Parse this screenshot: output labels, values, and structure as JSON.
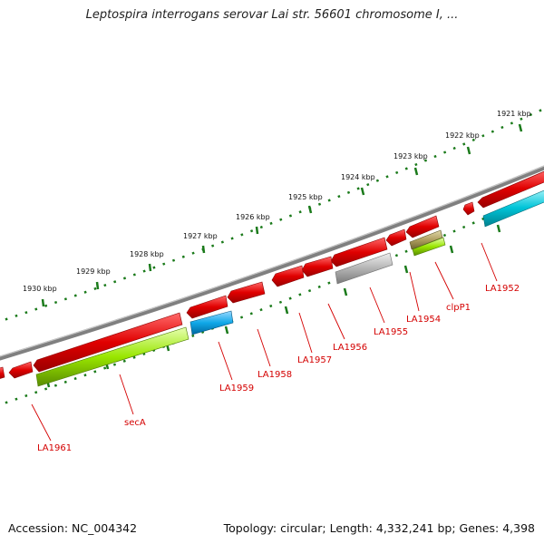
{
  "title": "Leptospira interrogans serovar Lai str. 56601 chromosome I, ...",
  "footer": {
    "accession": "Accession: NC_004342",
    "topology": "Topology: circular; Length: 4,332,241 bp; Genes: 4,398"
  },
  "scale_labels": [
    "1921 kbp",
    "1922 kbp",
    "1923 kbp",
    "1924 kbp",
    "1925 kbp",
    "1926 kbp",
    "1927 kbp",
    "1928 kbp",
    "1929 kbp",
    "1930 kbp"
  ],
  "gene_labels": [
    "LA1952",
    "clpP1",
    "LA1954",
    "LA1955",
    "LA1956",
    "LA1957",
    "LA1958",
    "LA1959",
    "secA",
    "LA1961"
  ],
  "colors": {
    "gene_red": "#e00000",
    "gene_cyan": "#00c4d8",
    "gene_blue": "#10a8e8",
    "gene_green": "#99e600",
    "gene_gray": "#a8a8a8",
    "gene_olive": "#b0a060",
    "backbone": "#808080",
    "tick": "#1a7a1a",
    "label": "#d40000"
  }
}
